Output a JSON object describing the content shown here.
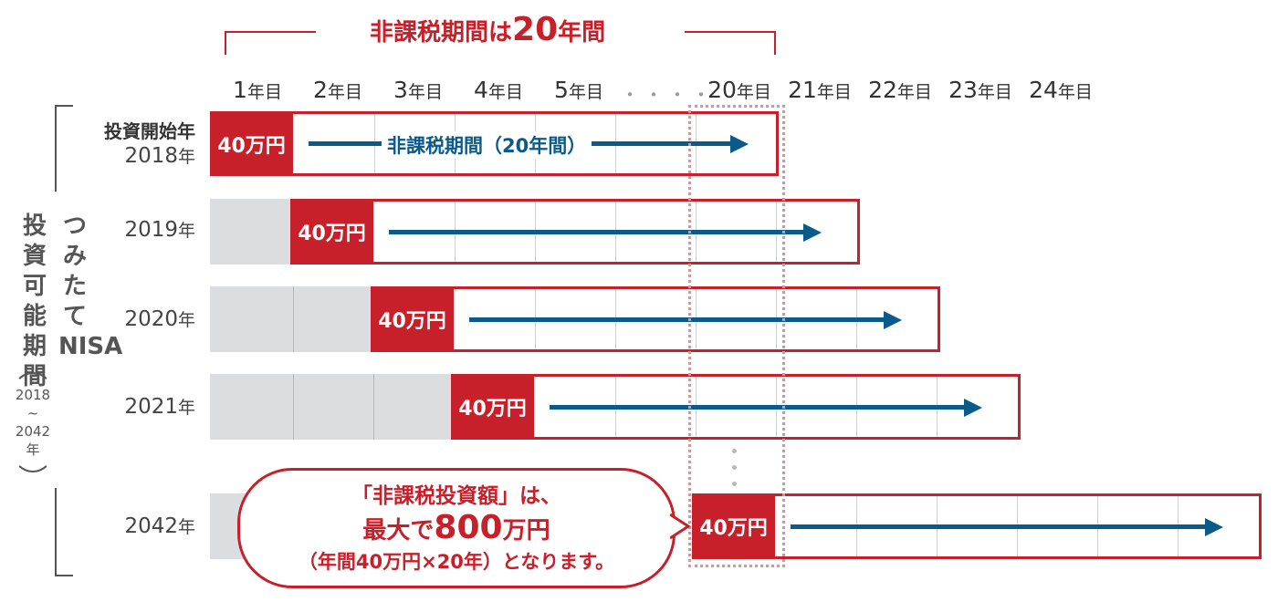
{
  "title": {
    "prefix": "非課税期間は",
    "highlight": "20",
    "suffix": "年間"
  },
  "columns": [
    {
      "num": "1",
      "unit": "年目"
    },
    {
      "num": "2",
      "unit": "年目"
    },
    {
      "num": "3",
      "unit": "年目"
    },
    {
      "num": "4",
      "unit": "年目"
    },
    {
      "num": "5",
      "unit": "年目"
    },
    {
      "num": "20",
      "unit": "年目"
    },
    {
      "num": "21",
      "unit": "年目"
    },
    {
      "num": "22",
      "unit": "年目"
    },
    {
      "num": "23",
      "unit": "年目"
    },
    {
      "num": "24",
      "unit": "年目"
    }
  ],
  "column_dots": "・・・・",
  "rows": [
    {
      "header": "投資開始年",
      "year": "2018",
      "unit": "年",
      "amount": "40万円"
    },
    {
      "year": "2019",
      "unit": "年",
      "amount": "40万円"
    },
    {
      "year": "2020",
      "unit": "年",
      "amount": "40万円"
    },
    {
      "year": "2021",
      "unit": "年",
      "amount": "40万円"
    },
    {
      "year": "2042",
      "unit": "年",
      "amount": "40万円"
    }
  ],
  "arrow_label": "非課税期間（20年間）",
  "side": {
    "tsumitate": "つみたてNISA",
    "period": "投資可能期間",
    "range_start": "2018",
    "range_tilde": "~",
    "range_end": "2042",
    "range_unit": "年"
  },
  "bubble": {
    "line1": "「非課税投資額」は、",
    "line2_prefix": "最大で",
    "line2_amount": "800",
    "line2_suffix": "万円",
    "line3": "（年間40万円×20年）となります。"
  },
  "colors": {
    "red": "#c8202a",
    "blue": "#0a5a8c",
    "gray": "#dcdde0"
  }
}
